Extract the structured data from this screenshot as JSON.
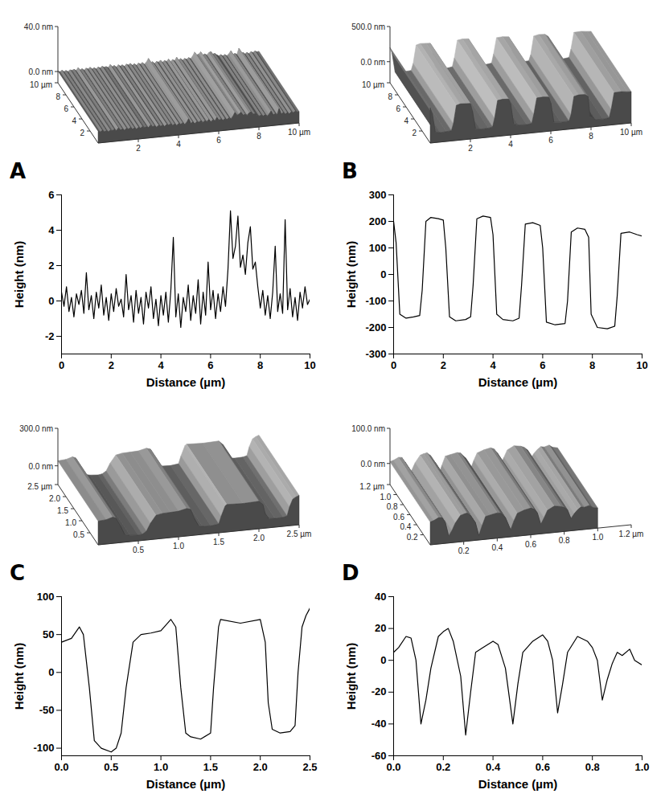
{
  "chart_data": [
    {
      "type": "line",
      "panel": "A",
      "color": "#000000",
      "xlabel": "Distance (µm)",
      "ylabel": "Height (nm)",
      "xlim": [
        0,
        10
      ],
      "xticks": [
        0,
        2,
        4,
        6,
        8,
        10
      ],
      "ylim": [
        -3,
        6
      ],
      "yticks": [
        -2,
        0,
        2,
        4,
        6
      ],
      "x": [
        0,
        0.1,
        0.2,
        0.3,
        0.4,
        0.5,
        0.6,
        0.7,
        0.8,
        0.9,
        1,
        1.1,
        1.2,
        1.3,
        1.4,
        1.5,
        1.6,
        1.7,
        1.8,
        1.9,
        2,
        2.1,
        2.2,
        2.3,
        2.4,
        2.5,
        2.6,
        2.7,
        2.8,
        2.9,
        3,
        3.1,
        3.2,
        3.3,
        3.4,
        3.5,
        3.6,
        3.7,
        3.8,
        3.9,
        4,
        4.1,
        4.2,
        4.3,
        4.4,
        4.5,
        4.6,
        4.7,
        4.8,
        4.9,
        5,
        5.1,
        5.2,
        5.3,
        5.4,
        5.5,
        5.6,
        5.7,
        5.8,
        5.9,
        6,
        6.1,
        6.2,
        6.3,
        6.4,
        6.5,
        6.6,
        6.7,
        6.8,
        6.9,
        7,
        7.1,
        7.2,
        7.3,
        7.4,
        7.5,
        7.6,
        7.7,
        7.8,
        7.9,
        8,
        8.1,
        8.2,
        8.3,
        8.4,
        8.5,
        8.6,
        8.7,
        8.8,
        8.9,
        9,
        9.1,
        9.2,
        9.3,
        9.4,
        9.5,
        9.6,
        9.7,
        9.8,
        9.9,
        10
      ],
      "values": [
        0.5,
        -0.3,
        0.8,
        -0.6,
        0.2,
        -0.9,
        0.4,
        -0.2,
        0.6,
        -0.7,
        1.6,
        -0.5,
        0.3,
        -1.0,
        0.5,
        -0.4,
        0.9,
        -0.8,
        0.2,
        -1.1,
        0.4,
        -0.6,
        0.7,
        -0.3,
        0.1,
        -0.9,
        1.5,
        -0.5,
        0.3,
        -1.2,
        0.6,
        -0.7,
        0.2,
        -1.3,
        0.5,
        -0.4,
        0.8,
        -1.0,
        0.1,
        -1.4,
        0.3,
        -0.8,
        0.5,
        -1.2,
        0.6,
        3.6,
        -0.9,
        0.4,
        -1.5,
        0.2,
        -0.6,
        0.9,
        -1.1,
        0.3,
        -0.7,
        1.2,
        -1.3,
        0.5,
        -0.8,
        2.2,
        -0.5,
        0.6,
        -1.0,
        0.4,
        -0.6,
        0.8,
        -0.3,
        1.8,
        5.1,
        2.4,
        3.1,
        4.8,
        1.9,
        2.6,
        1.5,
        3.3,
        4.2,
        1.8,
        2.2,
        0.8,
        -0.4,
        0.6,
        -0.8,
        0.3,
        -1.0,
        0.5,
        3.1,
        -0.6,
        0.4,
        -0.7,
        4.6,
        -0.5,
        0.7,
        -0.9,
        0.2,
        -1.1,
        0.5,
        -0.4,
        0.8,
        -0.2,
        0.1
      ],
      "surface_3d": {
        "xlim": [
          0,
          10
        ],
        "ylim": [
          0,
          10
        ],
        "zlim": [
          -10,
          40
        ],
        "xticks": [
          2,
          4,
          6,
          8,
          {
            "value": 10,
            "label": "10 µm"
          }
        ],
        "yticks": [
          2,
          4,
          6,
          8,
          {
            "value": 10,
            "label": "10 µm"
          }
        ],
        "zticks": [
          {
            "value": 40,
            "label": "40.0 nm"
          },
          {
            "value": 0,
            "label": "0.0 nm"
          }
        ]
      }
    },
    {
      "type": "line",
      "panel": "B",
      "color": "#000000",
      "xlabel": "Distance (µm)",
      "ylabel": "Height (nm)",
      "xlim": [
        0,
        10
      ],
      "xticks": [
        0,
        2,
        4,
        6,
        8,
        10
      ],
      "ylim": [
        -300,
        300
      ],
      "yticks": [
        -300,
        -200,
        -100,
        0,
        100,
        200,
        300
      ],
      "x": [
        0,
        0.1,
        0.25,
        0.5,
        0.8,
        1.05,
        1.15,
        1.3,
        1.5,
        1.8,
        2.0,
        2.1,
        2.25,
        2.5,
        2.9,
        3.1,
        3.2,
        3.35,
        3.6,
        3.9,
        4.0,
        4.15,
        4.4,
        4.8,
        5.05,
        5.15,
        5.3,
        5.6,
        5.9,
        6.0,
        6.15,
        6.5,
        6.9,
        7.0,
        7.15,
        7.4,
        7.7,
        7.85,
        7.95,
        8.2,
        8.6,
        8.9,
        9.0,
        9.15,
        9.5,
        9.8,
        10
      ],
      "values": [
        200,
        120,
        -150,
        -165,
        -160,
        -155,
        -60,
        200,
        215,
        210,
        205,
        100,
        -160,
        -175,
        -170,
        -160,
        -40,
        210,
        220,
        215,
        150,
        -150,
        -170,
        -175,
        -165,
        -40,
        190,
        195,
        185,
        100,
        -180,
        -190,
        -185,
        -100,
        160,
        175,
        170,
        140,
        -150,
        -200,
        -205,
        -195,
        -80,
        155,
        160,
        150,
        145
      ],
      "surface_3d": {
        "xlim": [
          0,
          10
        ],
        "ylim": [
          0,
          10
        ],
        "zlim": [
          -300,
          500
        ],
        "xticks": [
          2,
          4,
          6,
          8,
          {
            "value": 10,
            "label": "10 µm"
          }
        ],
        "yticks": [
          2,
          4,
          6,
          8,
          {
            "value": 10,
            "label": "10 µm"
          }
        ],
        "zticks": [
          {
            "value": 500,
            "label": "500.0 nm"
          },
          {
            "value": 0,
            "label": "0.0 nm"
          }
        ]
      }
    },
    {
      "type": "line",
      "panel": "C",
      "color": "#000000",
      "xlabel": "Distance (µm)",
      "ylabel": "Height (nm)",
      "xlim": [
        0,
        2.5
      ],
      "xticks": [
        {
          "value": 0,
          "label": "0.0"
        },
        0.5,
        {
          "value": 1,
          "label": "1.0"
        },
        1.5,
        {
          "value": 2,
          "label": "2.0"
        },
        2.5
      ],
      "ylim": [
        -110,
        100
      ],
      "yticks": [
        -100,
        -50,
        0,
        50,
        100
      ],
      "x": [
        0,
        0.1,
        0.18,
        0.22,
        0.28,
        0.33,
        0.4,
        0.5,
        0.55,
        0.6,
        0.65,
        0.72,
        0.8,
        0.9,
        1.0,
        1.1,
        1.15,
        1.2,
        1.25,
        1.3,
        1.4,
        1.5,
        1.53,
        1.58,
        1.6,
        1.8,
        2.0,
        2.05,
        2.08,
        2.12,
        2.2,
        2.3,
        2.35,
        2.38,
        2.42,
        2.46,
        2.5
      ],
      "values": [
        40,
        45,
        60,
        50,
        -20,
        -90,
        -100,
        -105,
        -100,
        -80,
        -20,
        40,
        50,
        52,
        55,
        70,
        60,
        -20,
        -80,
        -85,
        -88,
        -80,
        -20,
        60,
        70,
        65,
        70,
        40,
        -40,
        -75,
        -80,
        -78,
        -70,
        0,
        60,
        75,
        85
      ],
      "surface_3d": {
        "xlim": [
          0,
          2.5
        ],
        "ylim": [
          0,
          2.5
        ],
        "zlim": [
          -150,
          300
        ],
        "xticks": [
          0.5,
          {
            "value": 1,
            "label": "1.0"
          },
          1.5,
          {
            "value": 2,
            "label": "2.0"
          },
          {
            "value": 2.5,
            "label": "2.5 µm"
          }
        ],
        "yticks": [
          0.5,
          {
            "value": 1,
            "label": "1.0"
          },
          1.5,
          {
            "value": 2,
            "label": "2.0"
          },
          {
            "value": 2.5,
            "label": "2.5 µm"
          }
        ],
        "zticks": [
          {
            "value": 300,
            "label": "300.0 nm"
          },
          {
            "value": 0,
            "label": "0.0 nm"
          }
        ]
      }
    },
    {
      "type": "line",
      "panel": "D",
      "color": "#000000",
      "xlabel": "Distance (µm)",
      "ylabel": "Height (nm)",
      "xlim": [
        0,
        1
      ],
      "xticks": [
        {
          "value": 0,
          "label": "0.0"
        },
        0.2,
        0.4,
        0.6,
        0.8,
        {
          "value": 1,
          "label": "1.0"
        }
      ],
      "ylim": [
        -60,
        40
      ],
      "yticks": [
        -60,
        -40,
        -20,
        0,
        20,
        40
      ],
      "x": [
        0,
        0.02,
        0.05,
        0.07,
        0.09,
        0.11,
        0.13,
        0.15,
        0.18,
        0.2,
        0.22,
        0.24,
        0.27,
        0.29,
        0.31,
        0.33,
        0.36,
        0.4,
        0.42,
        0.45,
        0.48,
        0.5,
        0.52,
        0.56,
        0.6,
        0.62,
        0.64,
        0.66,
        0.68,
        0.7,
        0.74,
        0.78,
        0.8,
        0.82,
        0.84,
        0.86,
        0.88,
        0.9,
        0.92,
        0.95,
        0.97,
        1.0
      ],
      "values": [
        5,
        8,
        15,
        14,
        0,
        -40,
        -25,
        -5,
        15,
        18,
        20,
        12,
        -10,
        -47,
        -20,
        5,
        8,
        12,
        10,
        -5,
        -40,
        -15,
        5,
        12,
        16,
        12,
        0,
        -33,
        -15,
        5,
        15,
        12,
        8,
        0,
        -25,
        -12,
        -2,
        5,
        3,
        7,
        0,
        -3
      ],
      "surface_3d": {
        "xlim": [
          0,
          1.2
        ],
        "ylim": [
          0,
          1.2
        ],
        "zlim": [
          -60,
          100
        ],
        "xticks": [
          0.2,
          0.4,
          0.6,
          0.8,
          {
            "value": 1,
            "label": "1.0"
          },
          {
            "value": 1.2,
            "label": "1.2 µm"
          }
        ],
        "yticks": [
          0.2,
          0.4,
          0.6,
          0.8,
          {
            "value": 1,
            "label": "1.0"
          },
          {
            "value": 1.2,
            "label": "1.2 µm"
          }
        ],
        "zticks": [
          {
            "value": 100,
            "label": "100.0 nm"
          },
          {
            "value": 0,
            "label": "0.0 nm"
          }
        ]
      }
    }
  ]
}
